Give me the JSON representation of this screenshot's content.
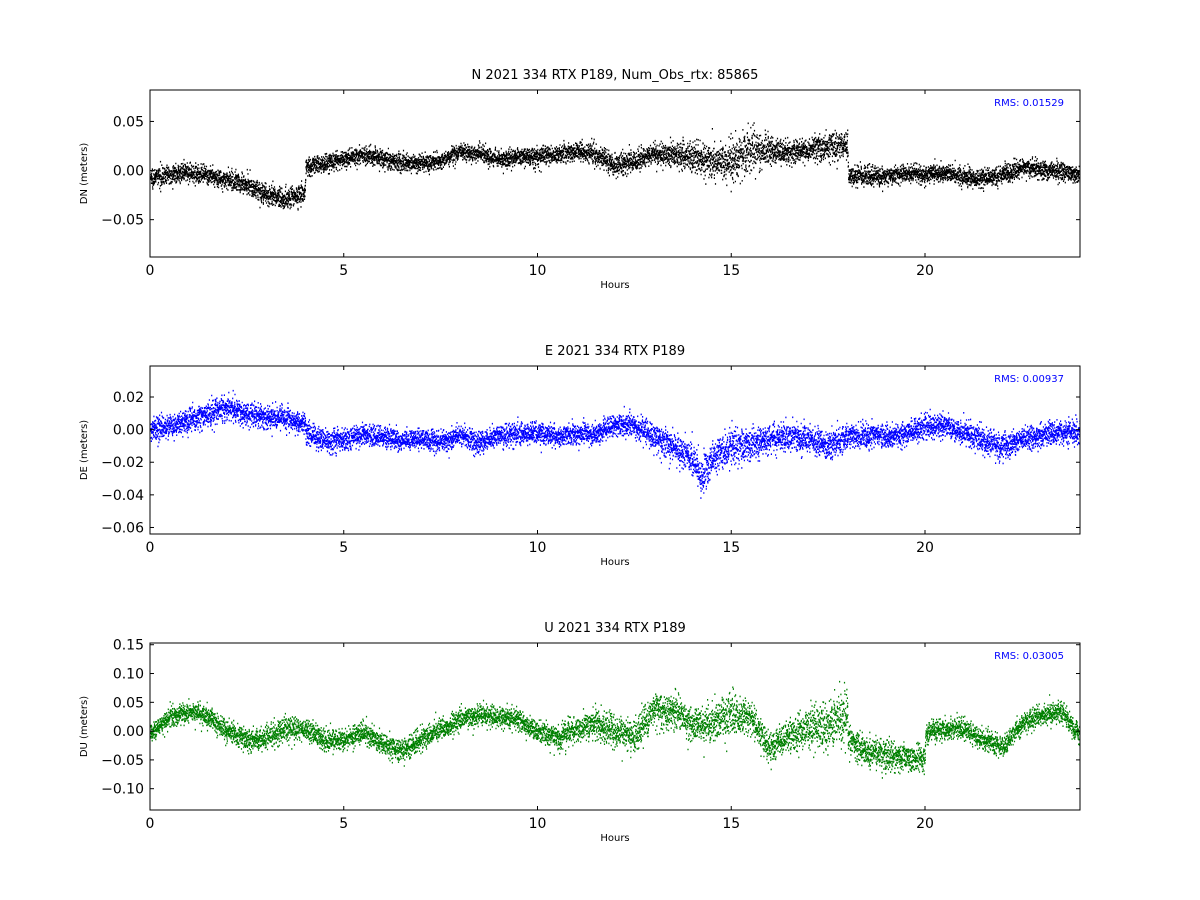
{
  "chart_data": [
    {
      "type": "scatter",
      "title": "N 2021 334 RTX  P189, Num_Obs_rtx: 85865",
      "xlabel": "Hours",
      "ylabel": "DN (meters)",
      "xlim": [
        0,
        24
      ],
      "ylim": [
        -0.088,
        0.082
      ],
      "xticks": [
        0,
        5,
        10,
        15,
        20
      ],
      "xtick_labels": [
        "0",
        "5",
        "10",
        "15",
        "20"
      ],
      "yticks": [
        -0.05,
        0.0,
        0.05
      ],
      "ytick_labels": [
        "−0.05",
        "0.00",
        "0.05"
      ],
      "grid": false,
      "legend": "none",
      "annotation": "RMS:  0.01529",
      "annotation_color": "#0000ff",
      "color": "#000000",
      "samples": 85865,
      "trend": {
        "x": [
          0,
          0.5,
          1,
          1.5,
          2,
          2.5,
          3,
          3.5,
          3.99,
          4.01,
          4.5,
          5,
          5.5,
          6,
          6.5,
          7,
          7.5,
          8,
          8.5,
          9,
          9.5,
          10,
          10.5,
          11,
          11.5,
          12,
          12.5,
          13,
          13.5,
          14,
          14.5,
          15,
          15.5,
          16,
          16.5,
          17,
          17.5,
          17.99,
          18.01,
          18.5,
          19,
          19.5,
          20,
          20.5,
          21,
          21.5,
          22,
          22.5,
          23,
          23.5,
          24
        ],
        "y": [
          -0.007,
          -0.003,
          -0.001,
          -0.005,
          -0.009,
          -0.013,
          -0.025,
          -0.028,
          -0.022,
          0.005,
          0.008,
          0.012,
          0.017,
          0.013,
          0.008,
          0.008,
          0.01,
          0.02,
          0.018,
          0.012,
          0.015,
          0.015,
          0.017,
          0.02,
          0.017,
          0.006,
          0.01,
          0.018,
          0.017,
          0.015,
          0.01,
          0.012,
          0.022,
          0.02,
          0.018,
          0.022,
          0.025,
          0.028,
          -0.006,
          -0.004,
          -0.006,
          -0.002,
          -0.003,
          -0.002,
          -0.006,
          -0.008,
          -0.003,
          0.003,
          0.001,
          0.0,
          -0.004
        ],
        "spread": [
          0.01,
          0.01,
          0.01,
          0.01,
          0.01,
          0.011,
          0.012,
          0.012,
          0.012,
          0.011,
          0.01,
          0.01,
          0.01,
          0.01,
          0.01,
          0.01,
          0.01,
          0.01,
          0.01,
          0.01,
          0.01,
          0.01,
          0.01,
          0.01,
          0.012,
          0.013,
          0.012,
          0.012,
          0.014,
          0.017,
          0.02,
          0.024,
          0.024,
          0.016,
          0.013,
          0.014,
          0.016,
          0.015,
          0.01,
          0.01,
          0.01,
          0.01,
          0.01,
          0.01,
          0.01,
          0.01,
          0.01,
          0.01,
          0.01,
          0.01,
          0.01
        ]
      }
    },
    {
      "type": "scatter",
      "title": "E 2021 334 RTX  P189",
      "xlabel": "Hours",
      "ylabel": "DE (meters)",
      "xlim": [
        0,
        24
      ],
      "ylim": [
        -0.064,
        0.039
      ],
      "xticks": [
        0,
        5,
        10,
        15,
        20
      ],
      "xtick_labels": [
        "0",
        "5",
        "10",
        "15",
        "20"
      ],
      "yticks": [
        -0.06,
        -0.04,
        -0.02,
        0.0,
        0.02
      ],
      "ytick_labels": [
        "−0.06",
        "−0.04",
        "−0.02",
        "0.00",
        "0.02"
      ],
      "grid": false,
      "legend": "none",
      "annotation": "RMS:  0.00937",
      "annotation_color": "#0000ff",
      "color": "#0000ff",
      "trend": {
        "x": [
          0,
          0.5,
          1,
          1.5,
          2,
          2.5,
          3,
          3.5,
          3.99,
          4.01,
          4.5,
          5,
          5.5,
          6,
          6.5,
          7,
          7.5,
          8,
          8.5,
          9,
          9.5,
          10,
          10.5,
          11,
          11.5,
          12,
          12.5,
          13,
          13.5,
          14,
          14.2,
          14.5,
          15,
          15.5,
          16,
          16.5,
          17,
          17.5,
          18,
          18.5,
          19,
          19.5,
          20,
          20.5,
          21,
          21.5,
          22,
          22.5,
          23,
          23.5,
          24
        ],
        "y": [
          0.0,
          0.003,
          0.006,
          0.01,
          0.014,
          0.01,
          0.008,
          0.007,
          0.005,
          -0.002,
          -0.006,
          -0.006,
          -0.003,
          -0.004,
          -0.006,
          -0.005,
          -0.007,
          -0.003,
          -0.008,
          -0.003,
          -0.002,
          -0.002,
          -0.004,
          -0.002,
          -0.002,
          0.004,
          0.003,
          -0.004,
          -0.01,
          -0.018,
          -0.028,
          -0.018,
          -0.01,
          -0.008,
          -0.005,
          -0.004,
          -0.005,
          -0.01,
          -0.004,
          -0.003,
          -0.004,
          -0.002,
          0.002,
          0.003,
          -0.002,
          -0.006,
          -0.01,
          -0.006,
          -0.003,
          -0.001,
          -0.002
        ],
        "spread": [
          0.008,
          0.008,
          0.008,
          0.008,
          0.009,
          0.008,
          0.007,
          0.007,
          0.007,
          0.008,
          0.008,
          0.008,
          0.007,
          0.007,
          0.007,
          0.007,
          0.007,
          0.007,
          0.008,
          0.007,
          0.008,
          0.007,
          0.007,
          0.007,
          0.007,
          0.008,
          0.008,
          0.009,
          0.01,
          0.011,
          0.012,
          0.012,
          0.012,
          0.011,
          0.009,
          0.009,
          0.009,
          0.01,
          0.009,
          0.008,
          0.008,
          0.008,
          0.008,
          0.008,
          0.008,
          0.009,
          0.009,
          0.008,
          0.008,
          0.008,
          0.008
        ]
      }
    },
    {
      "type": "scatter",
      "title": "U 2021 334 RTX  P189",
      "xlabel": "Hours",
      "ylabel": "DU (meters)",
      "xlim": [
        0,
        24
      ],
      "ylim": [
        -0.137,
        0.153
      ],
      "xticks": [
        0,
        5,
        10,
        15,
        20
      ],
      "xtick_labels": [
        "0",
        "5",
        "10",
        "15",
        "20"
      ],
      "yticks": [
        -0.1,
        -0.05,
        0.0,
        0.05,
        0.1,
        0.15
      ],
      "ytick_labels": [
        "−0.10",
        "−0.05",
        "0.00",
        "0.05",
        "0.10",
        "0.15"
      ],
      "grid": false,
      "legend": "none",
      "annotation": "RMS:  0.03005",
      "annotation_color": "#0000ff",
      "color": "#008000",
      "trend": {
        "x": [
          0,
          0.5,
          1,
          1.5,
          2,
          2.5,
          3,
          3.5,
          4,
          4.5,
          5,
          5.5,
          6,
          6.5,
          7,
          7.5,
          8,
          8.5,
          9,
          9.5,
          10,
          10.5,
          11,
          11.5,
          12,
          12.5,
          13,
          13.5,
          14,
          14.5,
          15,
          15.5,
          16,
          16.5,
          17,
          17.5,
          17.99,
          18.01,
          18.5,
          19,
          19.5,
          19.99,
          20.01,
          20.5,
          21,
          21.5,
          22,
          22.5,
          23,
          23.5,
          24
        ],
        "y": [
          -0.005,
          0.025,
          0.035,
          0.025,
          0.0,
          -0.015,
          -0.01,
          0.005,
          0.005,
          -0.015,
          -0.015,
          0.0,
          -0.02,
          -0.035,
          -0.01,
          0.005,
          0.02,
          0.03,
          0.025,
          0.02,
          0.0,
          -0.01,
          0.005,
          0.015,
          0.0,
          -0.01,
          0.04,
          0.035,
          0.01,
          0.015,
          0.03,
          0.025,
          -0.03,
          -0.005,
          0.005,
          0.01,
          0.03,
          -0.015,
          -0.035,
          -0.04,
          -0.045,
          -0.045,
          0.0,
          0.005,
          0.005,
          -0.015,
          -0.025,
          0.015,
          0.03,
          0.035,
          -0.01
        ],
        "spread": [
          0.018,
          0.018,
          0.018,
          0.018,
          0.02,
          0.022,
          0.022,
          0.022,
          0.022,
          0.02,
          0.02,
          0.02,
          0.022,
          0.025,
          0.022,
          0.02,
          0.02,
          0.02,
          0.02,
          0.02,
          0.02,
          0.025,
          0.025,
          0.03,
          0.03,
          0.035,
          0.035,
          0.035,
          0.03,
          0.035,
          0.04,
          0.035,
          0.03,
          0.03,
          0.04,
          0.05,
          0.05,
          0.025,
          0.03,
          0.03,
          0.025,
          0.025,
          0.02,
          0.02,
          0.02,
          0.02,
          0.02,
          0.02,
          0.02,
          0.02,
          0.02
        ]
      }
    }
  ]
}
